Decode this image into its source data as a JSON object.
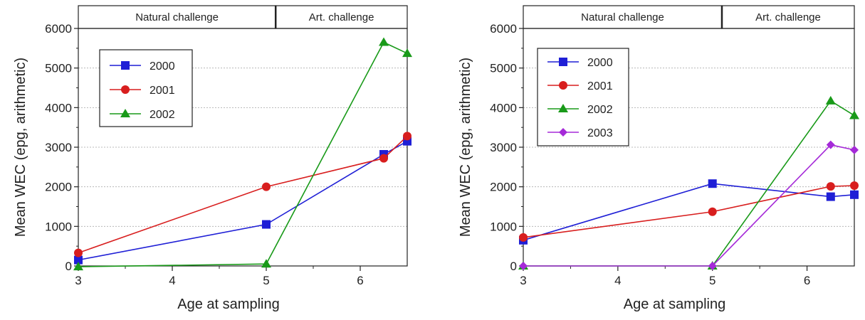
{
  "chart_data": [
    {
      "type": "line",
      "xlabel": "Age at sampling",
      "ylabel": "Mean WEC (epg, arithmetic)",
      "xlim": [
        3,
        6.5
      ],
      "ylim": [
        0,
        6000
      ],
      "xticks": [
        3,
        4,
        5,
        6
      ],
      "yticks": [
        0,
        1000,
        2000,
        3000,
        4000,
        5000,
        6000
      ],
      "grid": "horizontal-dashed",
      "legend_position": "upper-left",
      "phases": [
        {
          "label": "Natural challenge",
          "from": 3,
          "to": 5.1
        },
        {
          "label": "Art. challenge",
          "from": 5.1,
          "to": 6.5
        }
      ],
      "series": [
        {
          "name": "2000",
          "color": "#1f1fd6",
          "marker": "square",
          "points": [
            [
              3,
              150
            ],
            [
              5,
              1050
            ],
            [
              6.25,
              2820
            ],
            [
              6.5,
              3150
            ]
          ]
        },
        {
          "name": "2001",
          "color": "#d81e1e",
          "marker": "circle",
          "points": [
            [
              3,
              330
            ],
            [
              5,
              2000
            ],
            [
              6.25,
              2720
            ],
            [
              6.5,
              3280
            ]
          ]
        },
        {
          "name": "2002",
          "color": "#199a19",
          "marker": "triangle",
          "points": [
            [
              3,
              -20
            ],
            [
              5,
              50
            ],
            [
              6.25,
              5650
            ],
            [
              6.5,
              5370
            ]
          ]
        }
      ]
    },
    {
      "type": "line",
      "xlabel": "Age at sampling",
      "ylabel": "Mean WEC (epg, arithmetic)",
      "xlim": [
        3,
        6.5
      ],
      "ylim": [
        0,
        6000
      ],
      "xticks": [
        3,
        4,
        5,
        6
      ],
      "yticks": [
        0,
        1000,
        2000,
        3000,
        4000,
        5000,
        6000
      ],
      "grid": "horizontal-dashed",
      "legend_position": "upper-left",
      "phases": [
        {
          "label": "Natural challenge",
          "from": 3,
          "to": 5.1
        },
        {
          "label": "Art. challenge",
          "from": 5.1,
          "to": 6.5
        }
      ],
      "series": [
        {
          "name": "2000",
          "color": "#1f1fd6",
          "marker": "square",
          "points": [
            [
              3,
              650
            ],
            [
              5,
              2080
            ],
            [
              6.25,
              1750
            ],
            [
              6.5,
              1800
            ]
          ]
        },
        {
          "name": "2001",
          "color": "#d81e1e",
          "marker": "circle",
          "points": [
            [
              3,
              720
            ],
            [
              5,
              1370
            ],
            [
              6.25,
              2010
            ],
            [
              6.5,
              2030
            ]
          ]
        },
        {
          "name": "2002",
          "color": "#199a19",
          "marker": "triangle",
          "points": [
            [
              3,
              0
            ],
            [
              5,
              0
            ],
            [
              6.25,
              4170
            ],
            [
              6.5,
              3800
            ]
          ]
        },
        {
          "name": "2003",
          "color": "#a52ad8",
          "marker": "diamond",
          "points": [
            [
              3,
              0
            ],
            [
              5,
              0
            ],
            [
              6.25,
              3060
            ],
            [
              6.5,
              2930
            ]
          ]
        }
      ]
    }
  ]
}
